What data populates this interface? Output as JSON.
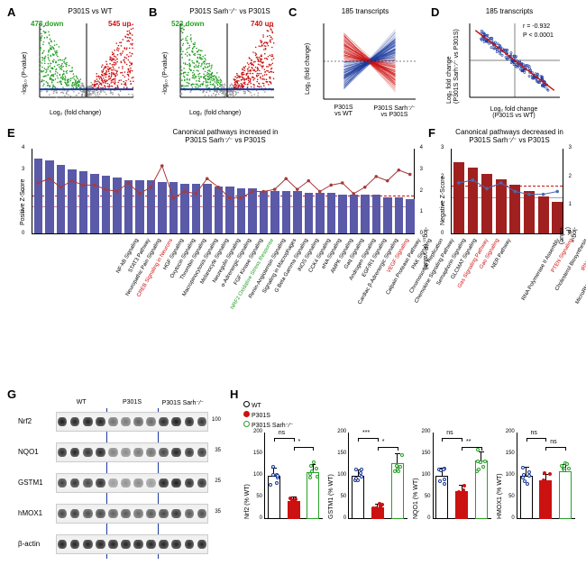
{
  "colors": {
    "up": "#cc1111",
    "down": "#2aa02a",
    "neutral": "#999999",
    "threshold": "#1a3a9c",
    "barE": "#5a5aa8",
    "barF": "#a02020",
    "lineE": "#a83a3a",
    "lineF": "#4a6ab0",
    "wt": "#ffffff",
    "p301s": "#cc1111",
    "sah": "#2aa02a",
    "blue": "#1a3a9c",
    "bg": "#ffffff"
  },
  "panelA": {
    "label": "A",
    "title": "P301S vs WT",
    "down_count": "478 down",
    "up_count": "545 up",
    "xlabel": "Log₂ (fold change)",
    "ylabel": "-log₁₀ (P-value)",
    "xlim": [
      -4,
      4
    ],
    "ylim": [
      0,
      12
    ],
    "threshold_y": 1.3,
    "points_approx": 800
  },
  "panelB": {
    "label": "B",
    "title": "P301S Sarh⁻⁄⁻ vs P301S",
    "down_count": "523 down",
    "up_count": "740 up",
    "xlabel": "Log₂ (fold change)",
    "ylabel": "-log₁₀ (P-value)",
    "xlim": [
      -4,
      4
    ],
    "ylim": [
      0,
      12
    ],
    "threshold_y": 1.3,
    "points_approx": 800
  },
  "panelC": {
    "label": "C",
    "title": "185 transcripts",
    "ylabel": "Log₂ (fold change)",
    "ylim": [
      -4,
      4
    ],
    "categories": [
      "P301S\nvs WT",
      "P301S Sarh⁻⁄⁻\nvs P301S"
    ],
    "n_lines": 185
  },
  "panelD": {
    "label": "D",
    "title": "185 transcripts",
    "xlabel": "Log₂ fold change\n(P301S vs WT)",
    "ylabel": "Log₂ fold change\n(P301S Sarh⁻⁄⁻ vs P301S)",
    "r": "r = -0.932",
    "p": "P < 0.0001",
    "xlim": [
      -4,
      4
    ],
    "ylim": [
      -4,
      4
    ]
  },
  "panelE": {
    "label": "E",
    "title": "Canonical pathways increased in\nP301S Sarh⁻⁄⁻ vs P301S",
    "ylabel_left": "Positive Z-Score",
    "ylabel_right": "-log₁₀ (P-value)",
    "ylim": [
      0,
      4
    ],
    "threshold_z": 1.8,
    "threshold_p": 1.3,
    "pathways": [
      {
        "name": "NF-kB Signaling",
        "z": 3.5,
        "p": 2.4,
        "hl": ""
      },
      {
        "name": "STAT3 Pathway",
        "z": 3.4,
        "p": 2.6,
        "hl": ""
      },
      {
        "name": "Neuropathic Pain Signaling",
        "z": 3.2,
        "p": 2.2,
        "hl": ""
      },
      {
        "name": "CREB Signaling in Neurons",
        "z": 3.0,
        "p": 2.5,
        "hl": "red"
      },
      {
        "name": "HGF Signaling",
        "z": 2.9,
        "p": 2.3,
        "hl": ""
      },
      {
        "name": "Oxytocin Signaling",
        "z": 2.8,
        "p": 2.3,
        "hl": ""
      },
      {
        "name": "Thrombin Signaling",
        "z": 2.7,
        "p": 2.1,
        "hl": ""
      },
      {
        "name": "Macropinocytosis Signaling",
        "z": 2.6,
        "p": 2.0,
        "hl": ""
      },
      {
        "name": "Melanocyte Signaling",
        "z": 2.5,
        "p": 2.4,
        "hl": ""
      },
      {
        "name": "Neuregulin Signaling",
        "z": 2.5,
        "p": 1.9,
        "hl": ""
      },
      {
        "name": "α-Adrenergic Signaling",
        "z": 2.5,
        "p": 2.2,
        "hl": ""
      },
      {
        "name": "FGF Kinase Signaling",
        "z": 2.4,
        "p": 3.2,
        "hl": ""
      },
      {
        "name": "NRF2 Oxidative Stress Response",
        "z": 2.4,
        "p": 1.7,
        "hl": "green"
      },
      {
        "name": "Renin-Angiotensin Signaling",
        "z": 2.3,
        "p": 2.0,
        "hl": ""
      },
      {
        "name": "Signaling in Macrophages",
        "z": 2.3,
        "p": 1.9,
        "hl": ""
      },
      {
        "name": "G Beta Gamma Signaling",
        "z": 2.3,
        "p": 2.6,
        "hl": ""
      },
      {
        "name": "iNOS Signaling",
        "z": 2.2,
        "p": 2.2,
        "hl": ""
      },
      {
        "name": "CCK4 Signaling",
        "z": 2.2,
        "p": 1.7,
        "hl": ""
      },
      {
        "name": "eNA Signaling",
        "z": 2.1,
        "p": 1.7,
        "hl": ""
      },
      {
        "name": "AMPK Signaling",
        "z": 2.1,
        "p": 2.0,
        "hl": ""
      },
      {
        "name": "Gaq Signaling",
        "z": 2.0,
        "p": 2.0,
        "hl": ""
      },
      {
        "name": "Androgen Signaling",
        "z": 2.0,
        "p": 2.1,
        "hl": ""
      },
      {
        "name": "EGF/R1 Signaling",
        "z": 2.0,
        "p": 2.6,
        "hl": ""
      },
      {
        "name": "Cardiac β-Adrenergic Signaling",
        "z": 2.0,
        "p": 2.1,
        "hl": ""
      },
      {
        "name": "VEGF Signaling",
        "z": 1.9,
        "p": 2.5,
        "hl": "red"
      },
      {
        "name": "Calpain Protease Pathway",
        "z": 1.9,
        "p": 2.0,
        "hl": ""
      },
      {
        "name": "PAK Signaling",
        "z": 1.9,
        "p": 2.3,
        "hl": ""
      },
      {
        "name": "Chromosomal Replication",
        "z": 1.8,
        "p": 2.4,
        "hl": ""
      },
      {
        "name": "Chemokine Signaling Pathway",
        "z": 1.8,
        "p": 1.9,
        "hl": ""
      },
      {
        "name": "Semaphorin Signaling",
        "z": 1.8,
        "p": 2.2,
        "hl": ""
      },
      {
        "name": "GLCMAT Signaling",
        "z": 1.8,
        "p": 2.7,
        "hl": ""
      },
      {
        "name": "Gas Signaling Pathway",
        "z": 1.7,
        "p": 2.5,
        "hl": "red"
      },
      {
        "name": "Gao Signaling",
        "z": 1.7,
        "p": 3.0,
        "hl": "red"
      },
      {
        "name": "NER Pathway",
        "z": 1.6,
        "p": 2.8,
        "hl": ""
      }
    ]
  },
  "panelF": {
    "label": "F",
    "title": "Canonical pathways decreased in\nP301S Sarh⁻⁄⁻ vs P301S",
    "ylabel_left": "Negative Z-Score",
    "ylabel_right": "-log₁₀ (P-value)",
    "ylim": [
      0,
      3
    ],
    "threshold_z": 1.7,
    "threshold_p": 1.3,
    "pathways": [
      {
        "name": "RNA Polymerase II Assembly",
        "z": 2.5,
        "p": 1.8,
        "hl": ""
      },
      {
        "name": "PTEN Signaling",
        "z": 2.3,
        "p": 1.9,
        "hl": "red"
      },
      {
        "name": "Cholesterol Biosynthesis",
        "z": 2.1,
        "p": 1.6,
        "hl": ""
      },
      {
        "name": "tRNA Charging",
        "z": 1.9,
        "p": 1.8,
        "hl": "red"
      },
      {
        "name": "MicroRNA Biogenesis Pathway",
        "z": 1.7,
        "p": 1.5,
        "hl": ""
      },
      {
        "name": "Hypoxia Signaling",
        "z": 1.5,
        "p": 1.4,
        "hl": ""
      },
      {
        "name": "PI3K/AKT Signaling",
        "z": 1.3,
        "p": 1.4,
        "hl": ""
      },
      {
        "name": "BEX2 Signaling Pathway",
        "z": 1.1,
        "p": 1.5,
        "hl": ""
      }
    ]
  },
  "panelG": {
    "label": "G",
    "groups": [
      "WT",
      "P301S",
      "P301S Sarh⁻⁄⁻"
    ],
    "lanes_per_group": 4,
    "proteins": [
      {
        "name": "Nrf2",
        "mw": "100",
        "intensity": [
          0.95,
          0.9,
          0.92,
          0.9,
          0.45,
          0.4,
          0.55,
          0.5,
          0.85,
          0.95,
          0.88,
          0.8
        ]
      },
      {
        "name": "NQO1",
        "mw": "35",
        "intensity": [
          0.85,
          0.9,
          0.8,
          0.88,
          0.35,
          0.3,
          0.4,
          0.45,
          0.7,
          0.9,
          0.8,
          0.75
        ]
      },
      {
        "name": "GSTM1",
        "mw": "25",
        "intensity": [
          0.75,
          0.8,
          0.7,
          0.85,
          0.2,
          0.25,
          0.3,
          0.2,
          0.9,
          0.95,
          0.85,
          0.8
        ]
      },
      {
        "name": "hMOX1",
        "mw": "35",
        "intensity": [
          0.7,
          0.75,
          0.65,
          0.7,
          0.55,
          0.6,
          0.5,
          0.6,
          0.7,
          0.8,
          0.6,
          0.65
        ]
      },
      {
        "name": "β-actin",
        "mw": "",
        "intensity": [
          0.9,
          0.9,
          0.9,
          0.9,
          0.9,
          0.9,
          0.9,
          0.9,
          0.9,
          0.9,
          0.9,
          0.9
        ]
      }
    ]
  },
  "panelH": {
    "label": "H",
    "legend": [
      "WT",
      "P301S",
      "P301S Sarh⁻⁄⁻"
    ],
    "charts": [
      {
        "ylabel": "Nrf2 (% WT)",
        "ylim": 200,
        "means": [
          100,
          42,
          108
        ],
        "sem": [
          18,
          10,
          20
        ],
        "sig": [
          [
            "ns",
            0,
            1
          ],
          [
            "*",
            1,
            2
          ]
        ]
      },
      {
        "ylabel": "GSTM1 (% WT)",
        "ylim": 200,
        "means": [
          100,
          28,
          130
        ],
        "sem": [
          15,
          8,
          22
        ],
        "sig": [
          [
            "***",
            0,
            1
          ],
          [
            "*",
            1,
            2
          ]
        ]
      },
      {
        "ylabel": "NQO1 (% WT)",
        "ylim": 200,
        "means": [
          100,
          65,
          135
        ],
        "sem": [
          18,
          14,
          22
        ],
        "sig": [
          [
            "ns",
            0,
            1
          ],
          [
            "**",
            1,
            2
          ]
        ]
      },
      {
        "ylabel": "HMOX1 (% WT)",
        "ylim": 200,
        "means": [
          100,
          90,
          110
        ],
        "sem": [
          20,
          15,
          18
        ],
        "sig": [
          [
            "ns",
            0,
            1
          ],
          [
            "ns",
            1,
            2
          ]
        ]
      }
    ]
  }
}
